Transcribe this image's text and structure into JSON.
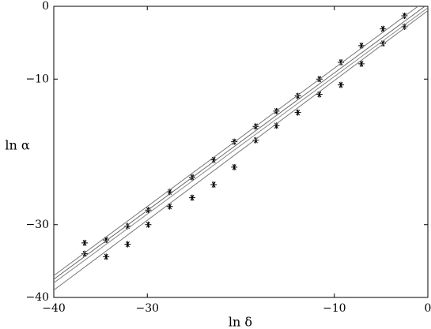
{
  "chart_data": {
    "type": "scatter",
    "xlabel": "ln δ",
    "ylabel": "ln α",
    "xlim": [
      -40,
      0
    ],
    "ylim": [
      -40,
      0
    ],
    "xticks": [
      {
        "value": -40,
        "label": "−40"
      },
      {
        "value": -30,
        "label": "−30"
      },
      {
        "value": -10,
        "label": "−10"
      },
      0
    ],
    "yticks": [
      0,
      {
        "value": -10,
        "label": "−10"
      },
      {
        "value": -30,
        "label": "−30"
      },
      {
        "value": -40,
        "label": "−40"
      }
    ],
    "series": [
      {
        "kind": "points",
        "color": "#000000",
        "x": [
          -36.7,
          -34.4,
          -32.1,
          -29.9,
          -27.6,
          -25.2,
          -22.9,
          -20.7,
          -18.4,
          -16.2,
          -13.9,
          -11.6,
          -9.3,
          -7.1,
          -4.8,
          -2.5
        ],
        "values": [
          -34.0,
          -34.4,
          -32.7,
          -30.0,
          -27.5,
          -26.3,
          -24.5,
          -22.1,
          -18.4,
          -16.4,
          -14.6,
          -12.1,
          -10.8,
          -7.9,
          -5.1,
          -2.8
        ]
      },
      {
        "kind": "points",
        "color": "#000000",
        "x": [
          -36.7,
          -34.4,
          -32.1,
          -29.9,
          -27.6,
          -25.2,
          -22.9,
          -20.7,
          -18.4,
          -16.2,
          -13.9,
          -11.6,
          -9.3,
          -7.1,
          -4.8,
          -2.5
        ],
        "values": [
          -32.5,
          -32.1,
          -30.2,
          -28.0,
          -25.5,
          -23.5,
          -21.1,
          -18.6,
          -16.5,
          -14.4,
          -12.3,
          -10.0,
          -7.7,
          -5.4,
          -3.1,
          -1.3
        ]
      },
      {
        "kind": "line",
        "color": "#777777",
        "x": [
          -40,
          0
        ],
        "values": [
          -37.0,
          1.0
        ]
      },
      {
        "kind": "line",
        "color": "#666666",
        "x": [
          -40,
          0
        ],
        "values": [
          -37.5,
          0.3
        ]
      },
      {
        "kind": "line",
        "color": "#888888",
        "x": [
          -40,
          0
        ],
        "values": [
          -38.0,
          -0.2
        ]
      },
      {
        "kind": "line",
        "color": "#777777",
        "x": [
          -40,
          0
        ],
        "values": [
          -39.0,
          -0.6
        ]
      }
    ]
  }
}
